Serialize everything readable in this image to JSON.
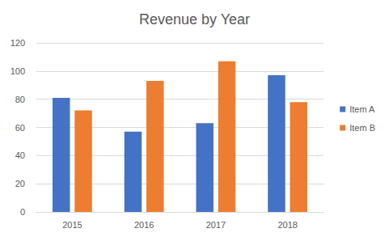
{
  "chart_data": {
    "type": "bar",
    "title": "Revenue by Year",
    "categories": [
      "2015",
      "2016",
      "2017",
      "2018"
    ],
    "series": [
      {
        "name": "Item A",
        "color": "#4472c4",
        "values": [
          81,
          57,
          63,
          97
        ]
      },
      {
        "name": "Item B",
        "color": "#ed7d31",
        "values": [
          72,
          93,
          107,
          78
        ]
      }
    ],
    "ylim": [
      0,
      120
    ],
    "yticks": [
      0,
      20,
      40,
      60,
      80,
      100,
      120
    ],
    "grid": true,
    "legend": "right"
  }
}
